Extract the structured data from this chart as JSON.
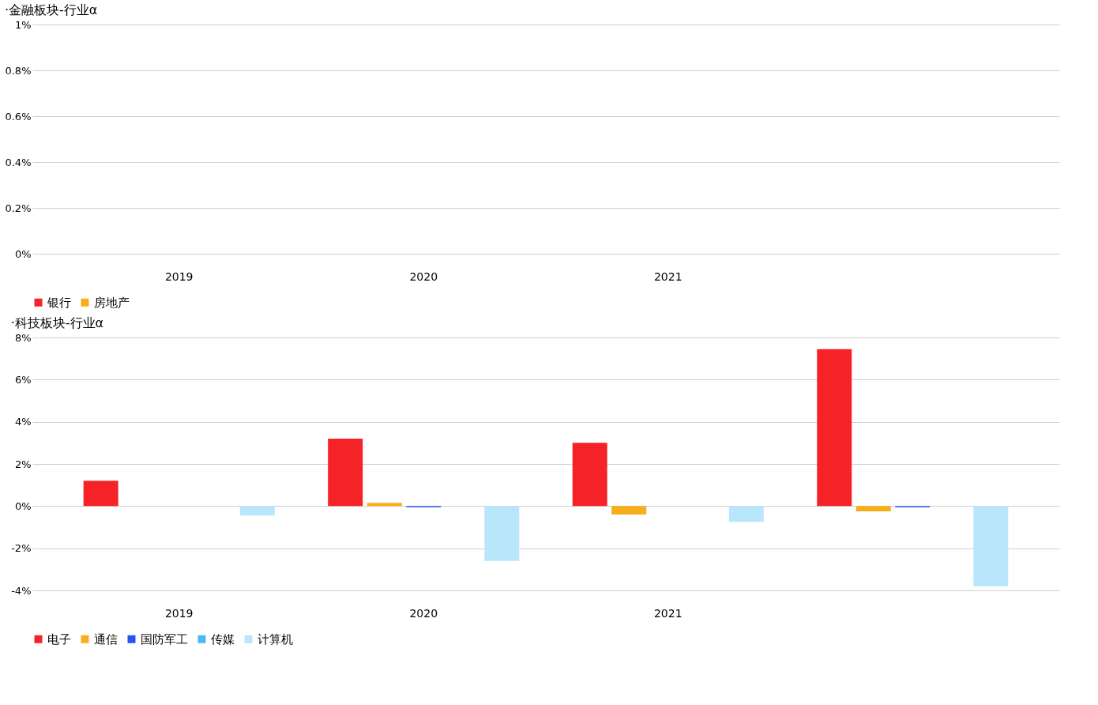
{
  "chart_data": [
    {
      "type": "bar",
      "title": "·金融板块-行业α",
      "categories": [
        "2019",
        "2020",
        "2021",
        null
      ],
      "series": [
        {
          "name": "银行",
          "color": "#f52228",
          "values": [
            0,
            0,
            0,
            0
          ]
        },
        {
          "name": "房地产",
          "color": "#f7ae1a",
          "values": [
            0,
            0,
            0,
            0
          ]
        }
      ],
      "ylim": [
        0,
        1
      ],
      "yticks": [
        {
          "value": 0,
          "label": "0%"
        },
        {
          "value": 0.2,
          "label": "0.2%"
        },
        {
          "value": 0.4,
          "label": "0.4%"
        },
        {
          "value": 0.6,
          "label": "0.6%"
        },
        {
          "value": 0.8,
          "label": "0.8%"
        },
        {
          "value": 1,
          "label": "1%"
        }
      ],
      "grid": "y",
      "legend": "bottom"
    },
    {
      "type": "bar",
      "title": "·科技板块-行业α",
      "categories": [
        "2019",
        "2020",
        "2021",
        null
      ],
      "series": [
        {
          "name": "电子",
          "color": "#f52228",
          "values": [
            1.2,
            3.2,
            3.0,
            7.45
          ]
        },
        {
          "name": "通信",
          "color": "#f7ae1a",
          "values": [
            0,
            0.15,
            -0.4,
            -0.25
          ]
        },
        {
          "name": "国防军工",
          "color": "#2356f0",
          "values": [
            0,
            -0.05,
            0,
            -0.05
          ]
        },
        {
          "name": "传媒",
          "color": "#4cb8f0",
          "values": [
            0,
            0,
            0,
            0
          ]
        },
        {
          "name": "计算机",
          "color": "#b8e6fb",
          "values": [
            -0.45,
            -2.6,
            -0.75,
            -3.8
          ]
        }
      ],
      "ylim": [
        -4,
        8
      ],
      "yticks": [
        {
          "value": -4,
          "label": "-4%"
        },
        {
          "value": -2,
          "label": "-2%"
        },
        {
          "value": 0,
          "label": "0%"
        },
        {
          "value": 2,
          "label": "2%"
        },
        {
          "value": 4,
          "label": "4%"
        },
        {
          "value": 6,
          "label": "6%"
        },
        {
          "value": 8,
          "label": "8%"
        }
      ],
      "grid": "y",
      "legend": "bottom"
    }
  ]
}
